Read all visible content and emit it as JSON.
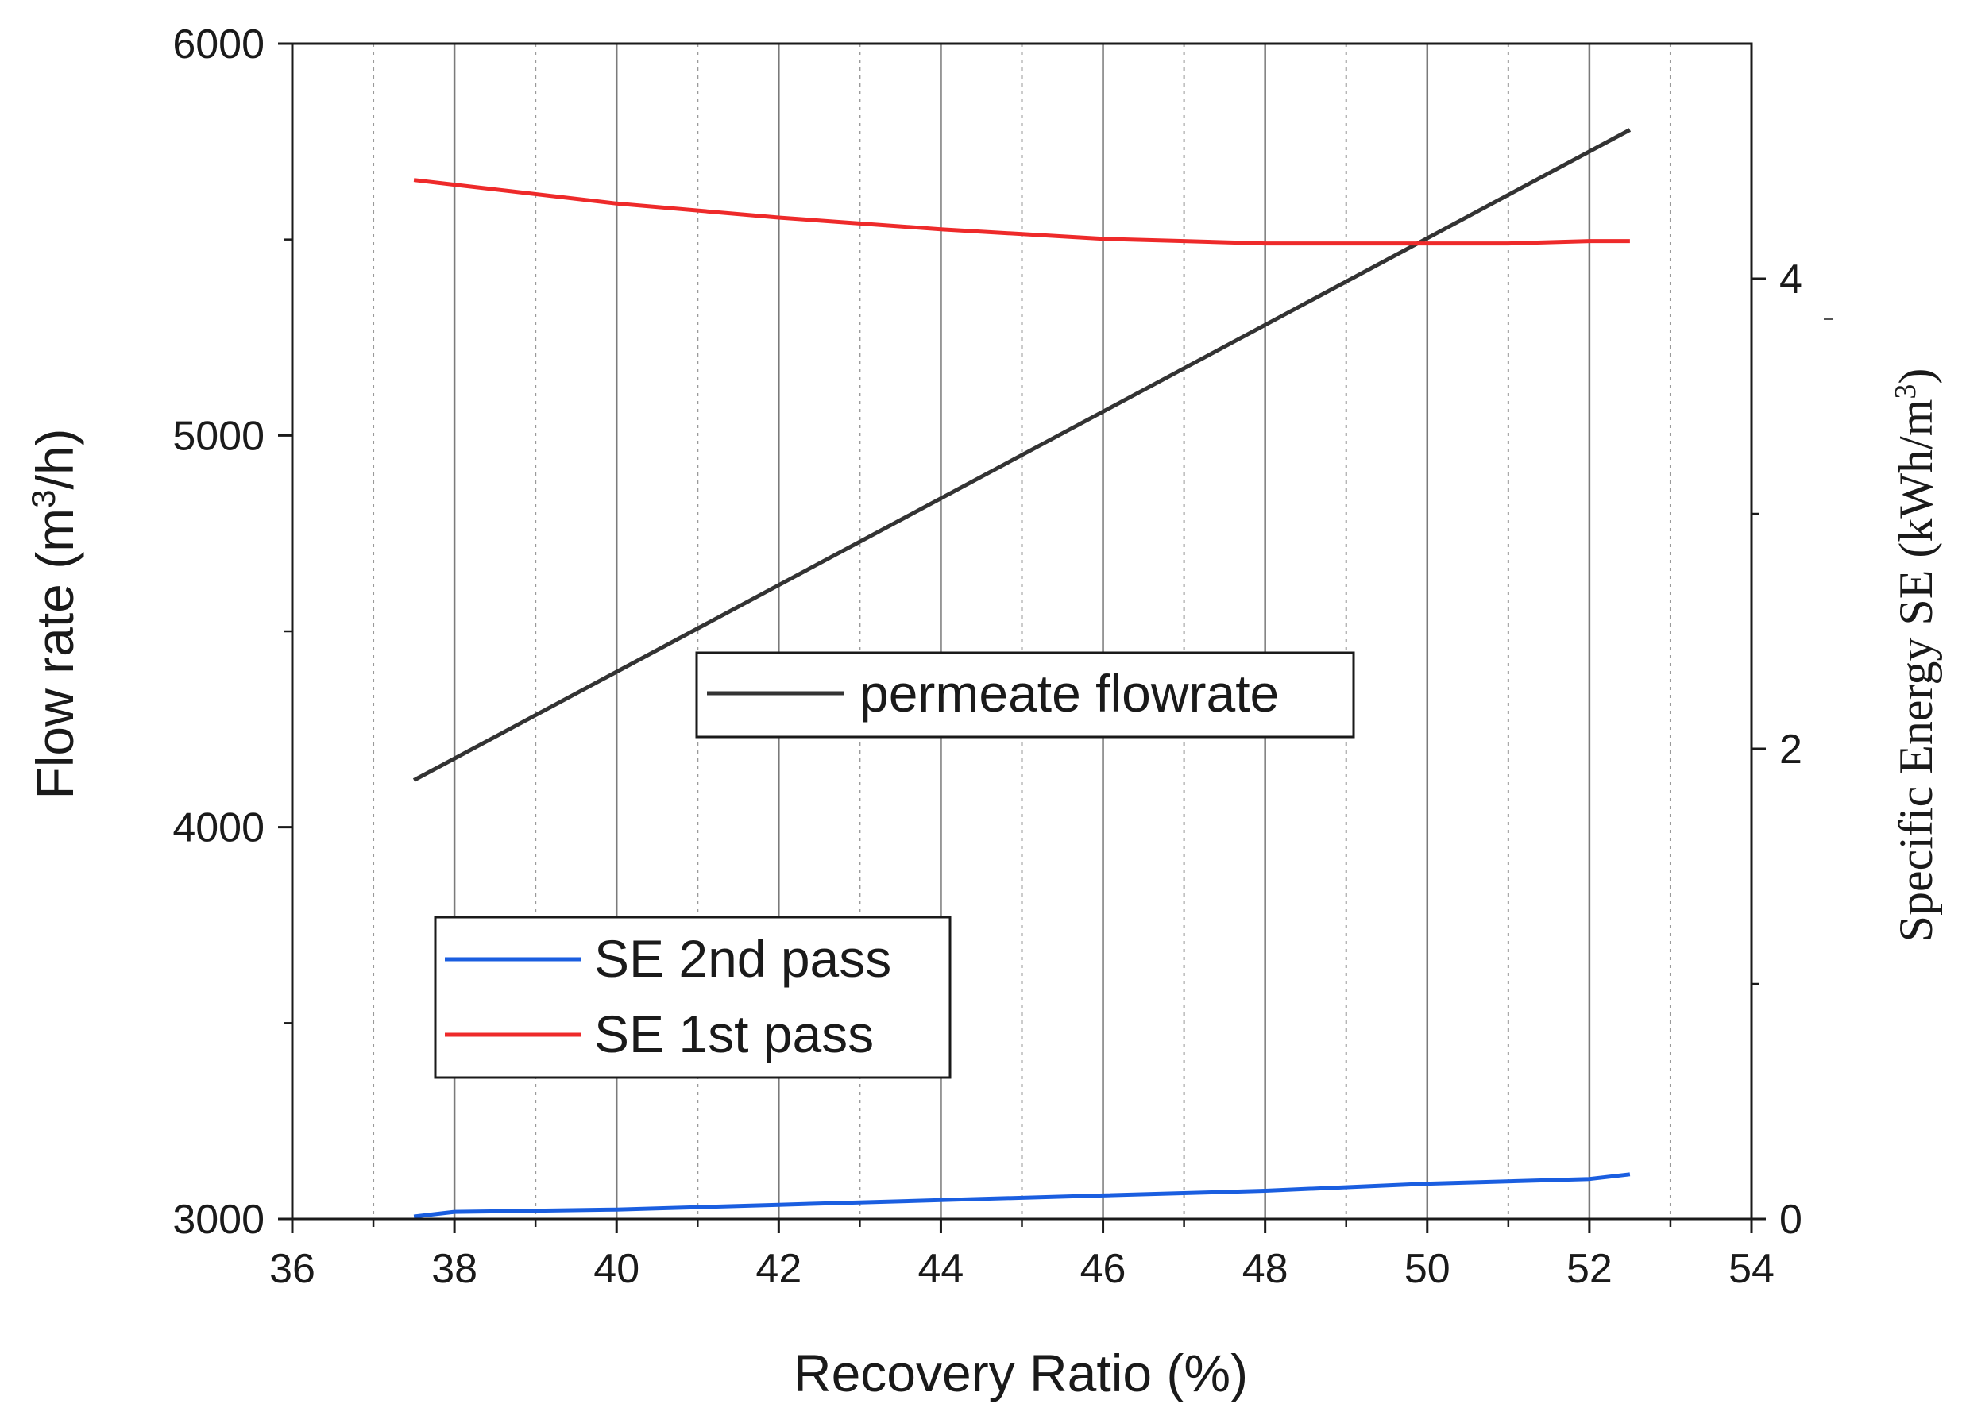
{
  "chart_data": {
    "type": "line",
    "title": "",
    "xlabel": "Recovery Ratio (%)",
    "ylabel_left": {
      "prefix": "Flow rate (m",
      "sup": "3",
      "suffix": "/h)"
    },
    "ylabel_right": {
      "prefix": "Specific Energy SE (kWh/m",
      "sup": "3",
      "suffix": ")"
    },
    "xlim": [
      36,
      54
    ],
    "ylim_left": [
      3000,
      6000
    ],
    "ylim_right": [
      0,
      5
    ],
    "x_ticks": [
      36,
      38,
      40,
      42,
      44,
      46,
      48,
      50,
      52,
      54
    ],
    "y_left_ticks": [
      3000,
      4000,
      5000,
      6000
    ],
    "y_right_ticks": [
      0,
      2,
      4
    ],
    "grid": {
      "major_x": [
        38,
        40,
        42,
        44,
        46,
        48,
        50,
        52
      ],
      "minor_x": [
        37,
        39,
        41,
        43,
        45,
        47,
        49,
        51,
        53
      ]
    },
    "series": [
      {
        "name": "permeate flowrate",
        "axis": "left",
        "color": "#333333",
        "x": [
          37.5,
          52.5
        ],
        "values": [
          4120,
          5780
        ]
      },
      {
        "name": "SE 1st pass",
        "axis": "right",
        "color": "#ee2a2a",
        "x": [
          37.5,
          38,
          40,
          42,
          44,
          46,
          47,
          48,
          49,
          50,
          51,
          52,
          52.5
        ],
        "values": [
          4.42,
          4.4,
          4.32,
          4.26,
          4.21,
          4.17,
          4.16,
          4.15,
          4.15,
          4.15,
          4.15,
          4.16,
          4.16
        ]
      },
      {
        "name": "SE 2nd pass",
        "axis": "right",
        "color": "#1a5ee0",
        "x": [
          37.5,
          38,
          40,
          42,
          44,
          46,
          48,
          50,
          52,
          52.5
        ],
        "values": [
          0.01,
          0.03,
          0.04,
          0.06,
          0.08,
          0.1,
          0.12,
          0.15,
          0.17,
          0.19
        ]
      }
    ],
    "legends": [
      {
        "entries": [
          "permeate flowrate"
        ]
      },
      {
        "entries": [
          "SE 2nd pass",
          "SE 1st pass"
        ]
      }
    ]
  }
}
